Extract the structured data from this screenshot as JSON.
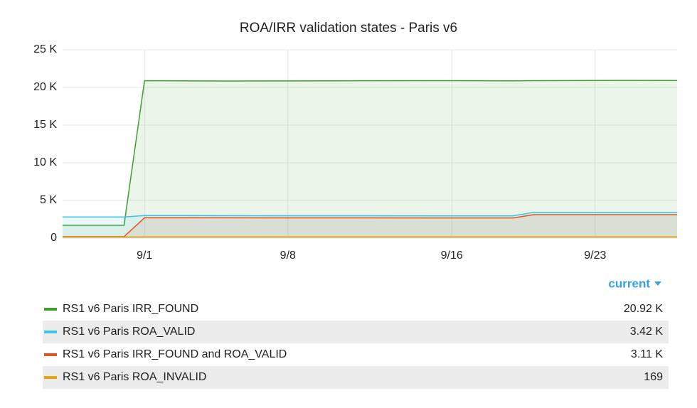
{
  "chart_data": {
    "type": "line",
    "title": "ROA/IRR validation states - Paris v6",
    "x": [
      "08-28",
      "08-31",
      "09-01",
      "09-05",
      "09-10",
      "09-15",
      "09-19",
      "09-20",
      "09-24",
      "09-27"
    ],
    "xlim": [
      "08-28",
      "09-27"
    ],
    "xticks": [
      {
        "value": "09-01",
        "label": "9/1"
      },
      {
        "value": "09-08",
        "label": "9/8"
      },
      {
        "value": "09-16",
        "label": "9/16"
      },
      {
        "value": "09-23",
        "label": "9/23"
      }
    ],
    "ylim": [
      0,
      25000
    ],
    "yticks": [
      0,
      {
        "value": 5000,
        "label": "5 K"
      },
      {
        "value": 10000,
        "label": "10 K"
      },
      {
        "value": 15000,
        "label": "15 K"
      },
      {
        "value": 20000,
        "label": "20 K"
      },
      {
        "value": 25000,
        "label": "25 K"
      }
    ],
    "grid": true,
    "legend_column": "current",
    "series": [
      {
        "name": "RS1 v6 Paris IRR_FOUND",
        "color": "#3f9e2f",
        "values": [
          1700,
          1700,
          20900,
          20850,
          20880,
          20900,
          20880,
          20900,
          20930,
          20920
        ],
        "current": "20.92 K"
      },
      {
        "name": "RS1 v6 Paris ROA_VALID",
        "color": "#3cc3e6",
        "values": [
          2800,
          2800,
          3000,
          2980,
          2970,
          2960,
          2960,
          3420,
          3420,
          3420
        ],
        "current": "3.42 K"
      },
      {
        "name": "RS1 v6 Paris IRR_FOUND and ROA_VALID",
        "color": "#e6521c",
        "values": [
          200,
          200,
          2700,
          2700,
          2690,
          2680,
          2680,
          3110,
          3110,
          3110
        ],
        "current": "3.11 K"
      },
      {
        "name": "RS1 v6 Paris ROA_INVALID",
        "color": "#e5a50d",
        "values": [
          150,
          150,
          160,
          160,
          165,
          165,
          165,
          169,
          169,
          169
        ],
        "current": "169"
      }
    ]
  }
}
